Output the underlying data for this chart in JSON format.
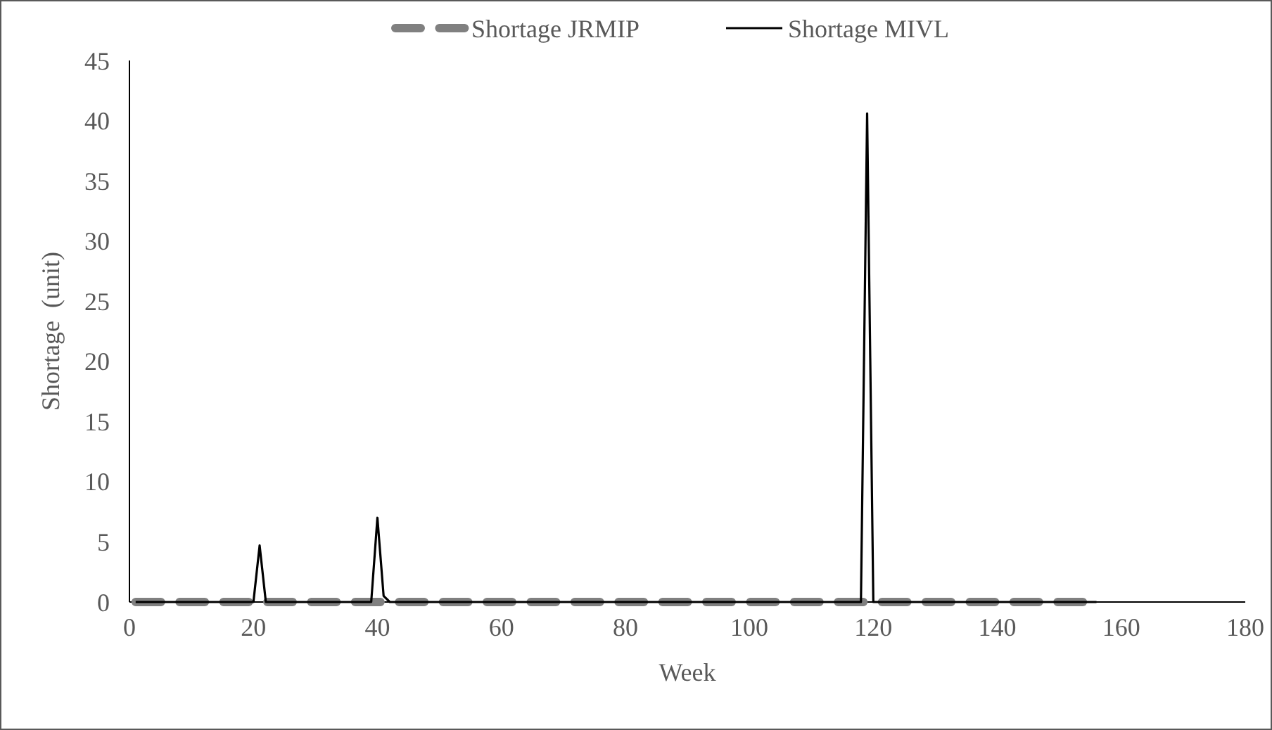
{
  "chart_data": {
    "type": "line",
    "xlabel": "Week",
    "ylabel": "Shortage  (unit)",
    "xlim": [
      0,
      180
    ],
    "xticks": [
      0,
      20,
      40,
      60,
      80,
      100,
      120,
      140,
      160,
      180
    ],
    "ylim": [
      0,
      45
    ],
    "yticks": [
      0,
      5,
      10,
      15,
      20,
      25,
      30,
      35,
      40,
      45
    ],
    "grid": false,
    "legend": "top",
    "marker": "none",
    "series": [
      {
        "name": "Shortage JRMIP",
        "color": "#808080",
        "line_style": "dashed",
        "x": [
          1,
          156
        ],
        "values": [
          0,
          0
        ]
      },
      {
        "name": "Shortage MIVL",
        "color": "#000000",
        "line_style": "solid",
        "x": [
          1,
          20,
          21,
          22,
          39,
          40,
          41,
          42,
          118,
          119,
          120,
          156
        ],
        "values": [
          0,
          0,
          4.7,
          0,
          0,
          7,
          0.5,
          0,
          0,
          40.6,
          0,
          0
        ]
      }
    ]
  }
}
